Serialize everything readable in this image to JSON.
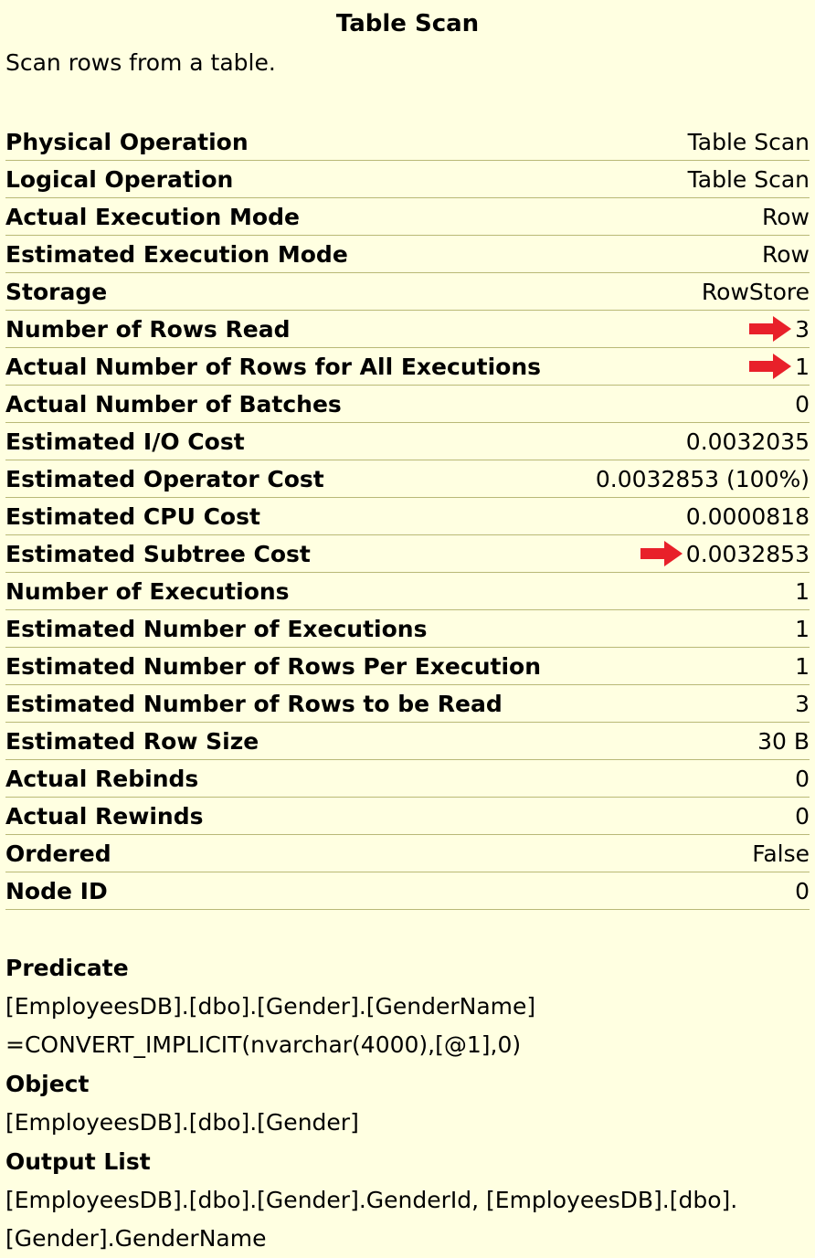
{
  "header": {
    "title": "Table Scan",
    "description": "Scan rows from a table."
  },
  "properties": [
    {
      "label": "Physical Operation",
      "value": "Table Scan"
    },
    {
      "label": "Logical Operation",
      "value": "Table Scan"
    },
    {
      "label": "Actual Execution Mode",
      "value": "Row"
    },
    {
      "label": "Estimated Execution Mode",
      "value": "Row"
    },
    {
      "label": "Storage",
      "value": "RowStore"
    },
    {
      "label": "Number of Rows Read",
      "value": "3",
      "arrow": true
    },
    {
      "label": "Actual Number of Rows for All Executions",
      "value": "1",
      "arrow": true
    },
    {
      "label": "Actual Number of Batches",
      "value": "0"
    },
    {
      "label": "Estimated I/O Cost",
      "value": "0.0032035"
    },
    {
      "label": "Estimated Operator Cost",
      "value": "0.0032853 (100%)"
    },
    {
      "label": "Estimated CPU Cost",
      "value": "0.0000818"
    },
    {
      "label": "Estimated Subtree Cost",
      "value": "0.0032853",
      "arrow": true
    },
    {
      "label": "Number of Executions",
      "value": "1"
    },
    {
      "label": "Estimated Number of Executions",
      "value": "1"
    },
    {
      "label": "Estimated Number of Rows Per Execution",
      "value": "1"
    },
    {
      "label": "Estimated Number of Rows to be Read",
      "value": "3"
    },
    {
      "label": "Estimated Row Size",
      "value": "30 B"
    },
    {
      "label": "Actual Rebinds",
      "value": "0"
    },
    {
      "label": "Actual Rewinds",
      "value": "0"
    },
    {
      "label": "Ordered",
      "value": "False"
    },
    {
      "label": "Node ID",
      "value": "0"
    }
  ],
  "sections": {
    "predicate": {
      "heading": "Predicate",
      "lines": [
        "[EmployeesDB].[dbo].[Gender].[GenderName]",
        "=CONVERT_IMPLICIT(nvarchar(4000),[@1],0)"
      ]
    },
    "object": {
      "heading": "Object",
      "lines": [
        "[EmployeesDB].[dbo].[Gender]"
      ]
    },
    "output_list": {
      "heading": "Output List",
      "lines": [
        "[EmployeesDB].[dbo].[Gender].GenderId, [EmployeesDB].[dbo].",
        "[Gender].GenderName"
      ]
    }
  },
  "colors": {
    "background": "#ffffe1",
    "row_divider": "#b9b977",
    "arrow": "#e8202a"
  },
  "icons": {
    "annotation": "red-arrow-icon"
  }
}
